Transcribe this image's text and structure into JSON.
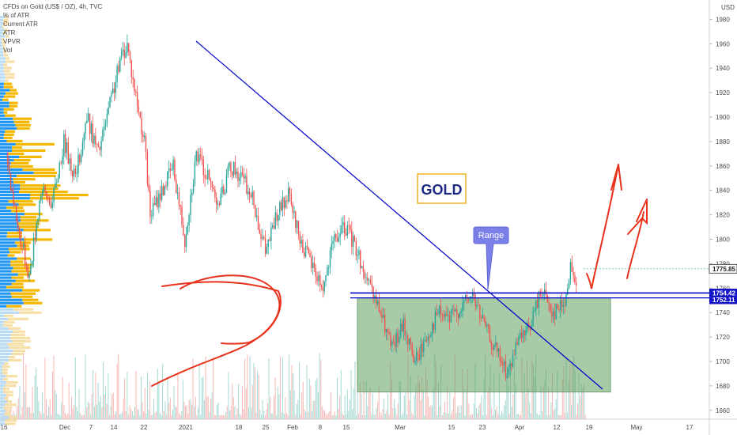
{
  "header": {
    "title": "CFDs on Gold (US$ / OZ), 4h, TVC",
    "indicators": [
      "% of ATR",
      "Current ATR",
      "ATR",
      "VPVR",
      "Vol"
    ]
  },
  "chart_data": {
    "type": "candlestick",
    "currency": "USD",
    "ylim": [
      1650,
      1990
    ],
    "y_ticks": [
      1660,
      1680,
      1700,
      1720,
      1740,
      1760,
      1780,
      1800,
      1820,
      1840,
      1860,
      1880,
      1900,
      1920,
      1940,
      1960,
      1980
    ],
    "x_ticks": [
      "16",
      "Dec",
      "7",
      "14",
      "22",
      "2021",
      "18",
      "25",
      "Feb",
      "8",
      "15",
      "Mar",
      "15",
      "23",
      "Apr",
      "12",
      "19",
      "May",
      "17"
    ],
    "price_path": [
      [
        0,
        1870
      ],
      [
        2,
        1810
      ],
      [
        4,
        1770
      ],
      [
        6,
        1840
      ],
      [
        8,
        1830
      ],
      [
        10,
        1880
      ],
      [
        12,
        1850
      ],
      [
        14,
        1900
      ],
      [
        16,
        1870
      ],
      [
        18,
        1910
      ],
      [
        20,
        1950
      ],
      [
        21,
        1960
      ],
      [
        22,
        1930
      ],
      [
        24,
        1880
      ],
      [
        25,
        1820
      ],
      [
        27,
        1840
      ],
      [
        29,
        1860
      ],
      [
        31,
        1800
      ],
      [
        33,
        1870
      ],
      [
        35,
        1850
      ],
      [
        37,
        1830
      ],
      [
        39,
        1860
      ],
      [
        41,
        1850
      ],
      [
        43,
        1830
      ],
      [
        45,
        1790
      ],
      [
        47,
        1820
      ],
      [
        49,
        1835
      ],
      [
        51,
        1800
      ],
      [
        53,
        1780
      ],
      [
        55,
        1760
      ],
      [
        57,
        1800
      ],
      [
        59,
        1810
      ],
      [
        61,
        1790
      ],
      [
        63,
        1760
      ],
      [
        65,
        1740
      ],
      [
        67,
        1710
      ],
      [
        69,
        1730
      ],
      [
        71,
        1700
      ],
      [
        73,
        1720
      ],
      [
        75,
        1740
      ],
      [
        77,
        1735
      ],
      [
        79,
        1745
      ],
      [
        81,
        1755
      ],
      [
        83,
        1730
      ],
      [
        85,
        1710
      ],
      [
        87,
        1690
      ],
      [
        89,
        1715
      ],
      [
        91,
        1730
      ],
      [
        93,
        1760
      ],
      [
        95,
        1740
      ],
      [
        97,
        1750
      ],
      [
        98,
        1775
      ],
      [
        99,
        1766
      ]
    ],
    "last_price": "1775.85",
    "price_tags": [
      "1754.42",
      "1752.11"
    ],
    "annotations": {
      "title": "GOLD",
      "range_label": "Range"
    }
  },
  "colors": {
    "up": "#26a69a",
    "down": "#ef5350",
    "trendline": "#0000cc",
    "range_box": "#5f9f5f",
    "drawing": "#e8321c",
    "vp_up": "#2196f3",
    "vp_down": "#f5b700",
    "callout": "#7b7fe8",
    "gold_border": "#e8a800",
    "gold_text": "#1f2a86"
  }
}
